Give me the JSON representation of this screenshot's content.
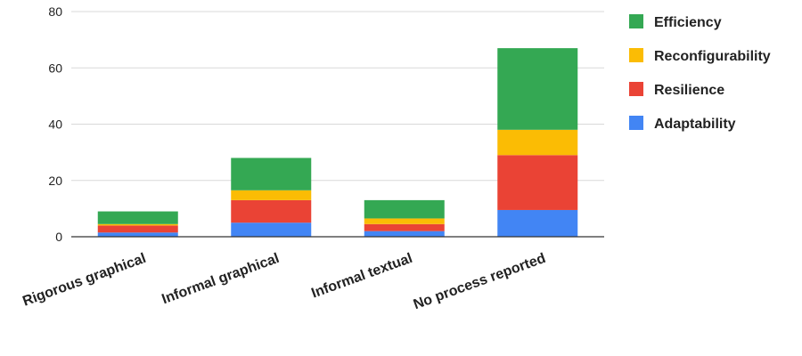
{
  "chart_data": {
    "type": "bar",
    "stacked": true,
    "title": "",
    "xlabel": "",
    "ylabel": "",
    "categories": [
      "Rigorous graphical",
      "Informal graphical",
      "Informal textual",
      "No process reported"
    ],
    "series": [
      {
        "name": "Adaptability",
        "color": "#4285F4",
        "values": [
          1.5,
          5,
          2,
          9.5
        ]
      },
      {
        "name": "Resilience",
        "color": "#EA4335",
        "values": [
          2.5,
          8,
          2.5,
          19.5
        ]
      },
      {
        "name": "Reconfigurability",
        "color": "#FBBC04",
        "values": [
          0.5,
          3.5,
          2,
          9
        ]
      },
      {
        "name": "Efficiency",
        "color": "#34A853",
        "values": [
          4.5,
          11.5,
          6.5,
          29
        ]
      }
    ],
    "ylim": [
      0,
      80
    ],
    "yticks": [
      0,
      20,
      40,
      60,
      80
    ],
    "grid": true,
    "legend_position": "right",
    "legend_order": [
      "Efficiency",
      "Reconfigurability",
      "Resilience",
      "Adaptability"
    ],
    "gridline_color": "#d9d9d9",
    "axis_color": "#333333"
  }
}
